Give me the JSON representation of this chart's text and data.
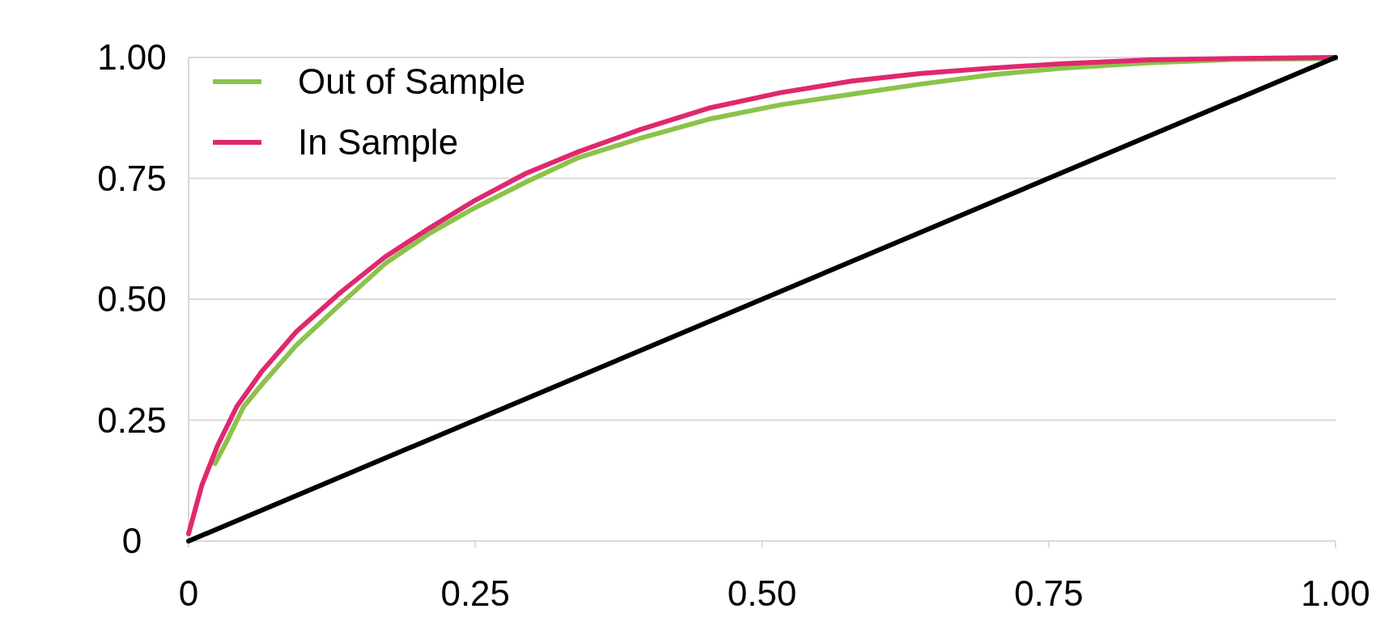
{
  "chart_data": {
    "type": "line",
    "xlim": [
      0,
      1
    ],
    "ylim": [
      0,
      1
    ],
    "xticks": [
      0,
      {
        "value": 0.25,
        "label": "0.25"
      },
      {
        "value": 0.5,
        "label": "0.50"
      },
      {
        "value": 0.75,
        "label": "0.75"
      },
      {
        "value": 1,
        "label": "1.00"
      }
    ],
    "yticks": [
      0,
      {
        "value": 0.25,
        "label": "0.25"
      },
      {
        "value": 0.5,
        "label": "0.50"
      },
      {
        "value": 0.75,
        "label": "0.75"
      },
      {
        "value": 1,
        "label": "1.00"
      }
    ],
    "grid": "y",
    "legend": "top left",
    "marker": "none",
    "line_style": "solid",
    "series": [
      {
        "name": "Out of Sample",
        "color": "#8bc34a",
        "x": [
          0.023,
          0.033,
          0.048,
          0.064,
          0.094,
          0.133,
          0.171,
          0.21,
          0.248,
          0.294,
          0.34,
          0.394,
          0.455,
          0.516,
          0.578,
          0.639,
          0.7,
          0.762,
          0.839,
          0.916,
          1
        ],
        "values": [
          0.16,
          0.205,
          0.278,
          0.324,
          0.405,
          0.491,
          0.573,
          0.636,
          0.687,
          0.742,
          0.793,
          0.833,
          0.873,
          0.902,
          0.924,
          0.945,
          0.964,
          0.978,
          0.989,
          0.996,
          0.998
        ]
      },
      {
        "name": "In Sample",
        "color": "#e0286e",
        "x": [
          0,
          0.004,
          0.0115,
          0.025,
          0.042,
          0.064,
          0.094,
          0.133,
          0.171,
          0.21,
          0.248,
          0.294,
          0.34,
          0.394,
          0.455,
          0.516,
          0.578,
          0.639,
          0.7,
          0.762,
          0.839,
          0.916,
          1
        ],
        "values": [
          0.015,
          0.05,
          0.115,
          0.196,
          0.278,
          0.351,
          0.433,
          0.515,
          0.587,
          0.647,
          0.702,
          0.76,
          0.805,
          0.851,
          0.896,
          0.927,
          0.951,
          0.967,
          0.978,
          0.987,
          0.995,
          0.998,
          1
        ]
      },
      {
        "color": "#000000",
        "x": [
          0,
          1
        ],
        "values": [
          0,
          1
        ]
      }
    ]
  }
}
